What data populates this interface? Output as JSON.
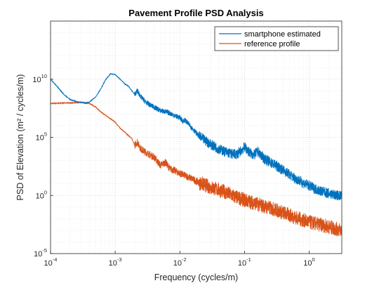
{
  "chart_data": {
    "type": "line",
    "title": "Pavement Profile PSD Analysis",
    "xlabel": "Frequency (cycles/m)",
    "ylabel": "PSD of Elevation (m² / cycles/m)",
    "xscale": "log",
    "yscale": "log",
    "xlim": [
      0.0001,
      3.2
    ],
    "ylim": [
      1e-05,
      1000000000000000
    ],
    "grid": "major and minor, dotted",
    "legend_location": "top-right",
    "x_ticks": [
      {
        "base": "10",
        "exp": "-4",
        "value": 0.0001
      },
      {
        "base": "10",
        "exp": "-3",
        "value": 0.001
      },
      {
        "base": "10",
        "exp": "-2",
        "value": 0.01
      },
      {
        "base": "10",
        "exp": "-1",
        "value": 0.1
      },
      {
        "base": "10",
        "exp": "0",
        "value": 1
      }
    ],
    "y_ticks": [
      {
        "base": "10",
        "exp": "-5",
        "value": 1e-05
      },
      {
        "base": "10",
        "exp": "0",
        "value": 1
      },
      {
        "base": "10",
        "exp": "5",
        "value": 100000
      },
      {
        "base": "10",
        "exp": "10",
        "value": 10000000000
      }
    ],
    "series": [
      {
        "name": "smartphone estimated",
        "color": "#0072BD",
        "points": [
          [
            0.0001,
            10000000000.0
          ],
          [
            0.00013,
            2000000000.0
          ],
          [
            0.00016,
            500000000.0
          ],
          [
            0.0002,
            180000000.0
          ],
          [
            0.00025,
            120000000.0
          ],
          [
            0.0003,
            100000000.0
          ],
          [
            0.00035,
            90000000.0
          ],
          [
            0.0004,
            110000000.0
          ],
          [
            0.0005,
            300000000.0
          ],
          [
            0.0006,
            1500000000.0
          ],
          [
            0.0007,
            8000000000.0
          ],
          [
            0.00085,
            30000000000.0
          ],
          [
            0.001,
            25000000000.0
          ],
          [
            0.0012,
            10000000000.0
          ],
          [
            0.0014,
            4000000000.0
          ],
          [
            0.0016,
            2500000000.0
          ],
          [
            0.002,
            500000000.0
          ],
          [
            0.0022,
            1000000000.0
          ],
          [
            0.0025,
            300000000.0
          ],
          [
            0.003,
            100000000.0
          ],
          [
            0.0035,
            60000000.0
          ],
          [
            0.004,
            40000000.0
          ],
          [
            0.005,
            20000000.0
          ],
          [
            0.006,
            16000000.0
          ],
          [
            0.007,
            12000000.0
          ],
          [
            0.0085,
            7000000.0
          ],
          [
            0.01,
            5000000.0
          ],
          [
            0.011,
            2500000.0
          ],
          [
            0.012,
            3000000.0
          ],
          [
            0.014,
            1200000.0
          ],
          [
            0.016,
            500000.0
          ],
          [
            0.02,
            120000.0
          ],
          [
            0.025,
            50000.0
          ],
          [
            0.03,
            25000.0
          ],
          [
            0.04,
            10000.0
          ],
          [
            0.05,
            6000
          ],
          [
            0.06,
            4000
          ],
          [
            0.07,
            3500
          ],
          [
            0.08,
            4000
          ],
          [
            0.09,
            8000
          ],
          [
            0.1,
            15000
          ],
          [
            0.12,
            5000
          ],
          [
            0.14,
            3000
          ],
          [
            0.16,
            6000
          ],
          [
            0.18,
            3000
          ],
          [
            0.2,
            1500
          ],
          [
            0.25,
            700
          ],
          [
            0.3,
            400
          ],
          [
            0.4,
            150
          ],
          [
            0.5,
            60
          ],
          [
            0.6,
            30
          ],
          [
            0.7,
            20
          ],
          [
            0.8,
            12
          ],
          [
            1,
            7
          ],
          [
            1.2,
            4
          ],
          [
            1.5,
            2.5
          ],
          [
            2,
            1.5
          ],
          [
            2.5,
            1.1
          ],
          [
            3.2,
            0.9
          ]
        ]
      },
      {
        "name": "reference profile",
        "color": "#D95319",
        "points": [
          [
            0.0001,
            80000000.0
          ],
          [
            0.00015,
            90000000.0
          ],
          [
            0.0002,
            90000000.0
          ],
          [
            0.0003,
            100000000.0
          ],
          [
            0.0004,
            80000000.0
          ],
          [
            0.0005,
            40000000.0
          ],
          [
            0.0006,
            15000000.0
          ],
          [
            0.0008,
            5000000.0
          ],
          [
            0.001,
            2000000.0
          ],
          [
            0.0012,
            600000.0
          ],
          [
            0.0015,
            200000.0
          ],
          [
            0.0018,
            80000.0
          ],
          [
            0.002,
            20000.0
          ],
          [
            0.0022,
            40000.0
          ],
          [
            0.0025,
            10000.0
          ],
          [
            0.003,
            5000
          ],
          [
            0.004,
            2000
          ],
          [
            0.005,
            400
          ],
          [
            0.006,
            700
          ],
          [
            0.007,
            200
          ],
          [
            0.008,
            150
          ],
          [
            0.01,
            80
          ],
          [
            0.015,
            30
          ],
          [
            0.02,
            12
          ],
          [
            0.03,
            5
          ],
          [
            0.05,
            2
          ],
          [
            0.07,
            0.8
          ],
          [
            0.1,
            0.4
          ],
          [
            0.15,
            0.2
          ],
          [
            0.2,
            0.12
          ],
          [
            0.3,
            0.06
          ],
          [
            0.5,
            0.02
          ],
          [
            0.7,
            0.01
          ],
          [
            1,
            0.005
          ],
          [
            1.5,
            0.003
          ],
          [
            2,
            0.002
          ],
          [
            2.5,
            0.0014
          ],
          [
            3.2,
            0.001
          ]
        ]
      }
    ]
  }
}
